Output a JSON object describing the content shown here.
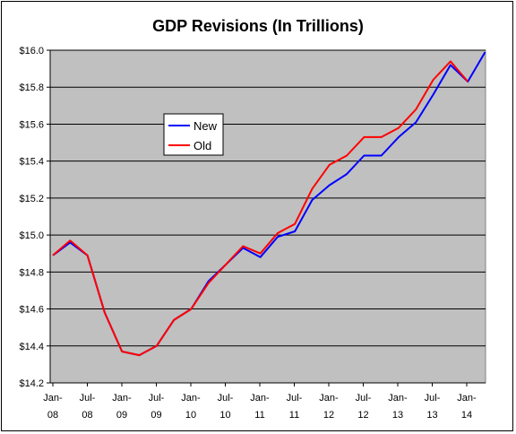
{
  "chart_data": {
    "type": "line",
    "title": "GDP Revisions (In Trillions)",
    "xlabel": "",
    "ylabel": "",
    "ylim": [
      14.2,
      16.0
    ],
    "yticks": [
      "$14.2",
      "$14.4",
      "$14.6",
      "$14.8",
      "$15.0",
      "$15.2",
      "$15.4",
      "$15.6",
      "$15.8",
      "$16.0"
    ],
    "yticks_values": [
      14.2,
      14.4,
      14.6,
      14.8,
      15.0,
      15.2,
      15.4,
      15.6,
      15.8,
      16.0
    ],
    "x": [
      "2008-Q1",
      "2008-Q2",
      "2008-Q3",
      "2008-Q4",
      "2009-Q1",
      "2009-Q2",
      "2009-Q3",
      "2009-Q4",
      "2010-Q1",
      "2010-Q2",
      "2010-Q3",
      "2010-Q4",
      "2011-Q1",
      "2011-Q2",
      "2011-Q3",
      "2011-Q4",
      "2012-Q1",
      "2012-Q2",
      "2012-Q3",
      "2012-Q4",
      "2013-Q1",
      "2013-Q2",
      "2013-Q3",
      "2013-Q4",
      "2014-Q1",
      "2014-Q2"
    ],
    "xtick_labels": [
      {
        "line1": "Jan-",
        "line2": "08"
      },
      {
        "line1": "Jul-",
        "line2": "08"
      },
      {
        "line1": "Jan-",
        "line2": "09"
      },
      {
        "line1": "Jul-",
        "line2": "09"
      },
      {
        "line1": "Jan-",
        "line2": "10"
      },
      {
        "line1": "Jul-",
        "line2": "10"
      },
      {
        "line1": "Jan-",
        "line2": "11"
      },
      {
        "line1": "Jul-",
        "line2": "11"
      },
      {
        "line1": "Jan-",
        "line2": "12"
      },
      {
        "line1": "Jul-",
        "line2": "12"
      },
      {
        "line1": "Jan-",
        "line2": "13"
      },
      {
        "line1": "Jul-",
        "line2": "13"
      },
      {
        "line1": "Jan-",
        "line2": "14"
      }
    ],
    "series": [
      {
        "name": "New",
        "color": "#0000ff",
        "values": [
          14.89,
          14.96,
          14.89,
          14.58,
          14.37,
          14.35,
          14.4,
          14.54,
          14.6,
          14.75,
          14.84,
          14.93,
          14.88,
          14.99,
          15.02,
          15.19,
          15.27,
          15.33,
          15.43,
          15.43,
          15.53,
          15.61,
          15.76,
          15.92,
          15.83,
          15.99
        ]
      },
      {
        "name": "Old",
        "color": "#ff0000",
        "values": [
          14.89,
          14.97,
          14.89,
          14.58,
          14.37,
          14.35,
          14.4,
          14.54,
          14.6,
          14.74,
          14.84,
          14.94,
          14.9,
          15.01,
          15.06,
          15.25,
          15.38,
          15.43,
          15.53,
          15.53,
          15.58,
          15.68,
          15.84,
          15.94,
          15.83,
          null
        ]
      }
    ],
    "plot_background": "#c0c0c0",
    "grid": true,
    "legend_position": "upper-left inside plot"
  }
}
